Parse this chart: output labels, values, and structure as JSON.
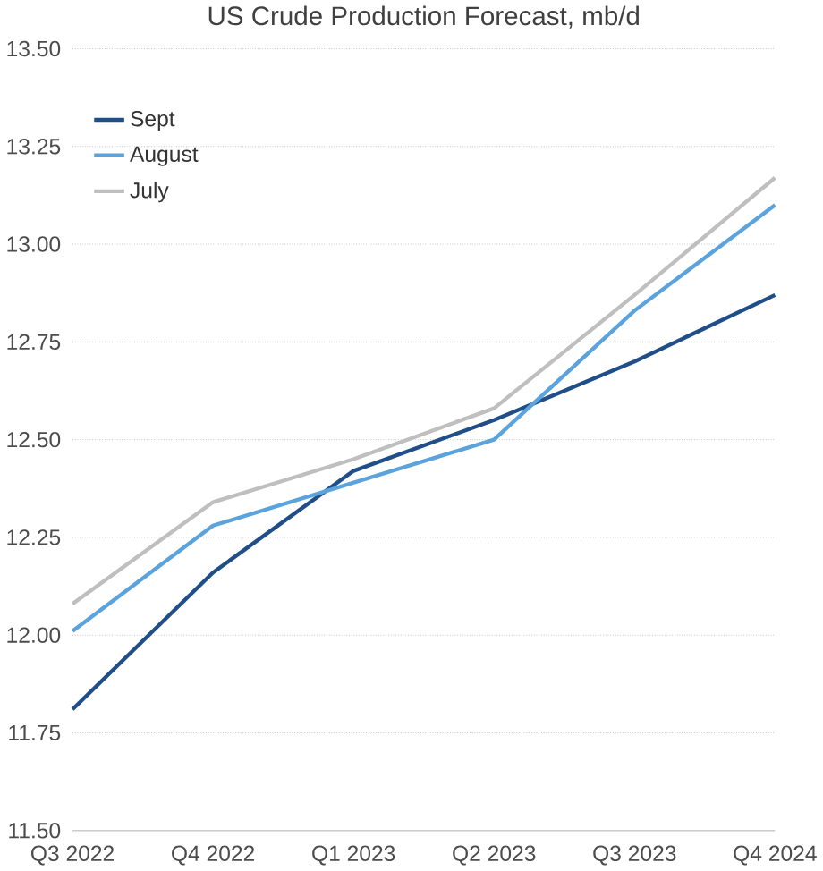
{
  "chart_data": {
    "type": "line",
    "title": "US Crude Production Forecast, mb/d",
    "categories": [
      "Q3 2022",
      "Q4 2022",
      "Q1 2023",
      "Q2 2023",
      "Q3 2023",
      "Q4 2024"
    ],
    "series": [
      {
        "name": "Sept",
        "color": "#1f4e89",
        "values": [
          11.81,
          12.16,
          12.42,
          12.55,
          12.7,
          12.87
        ]
      },
      {
        "name": "August",
        "color": "#5ba3dc",
        "values": [
          12.01,
          12.28,
          12.39,
          12.5,
          12.83,
          13.1
        ]
      },
      {
        "name": "July",
        "color": "#bfbfbf",
        "values": [
          12.08,
          12.34,
          12.45,
          12.58,
          12.87,
          13.17
        ]
      }
    ],
    "ylim": [
      11.5,
      13.5
    ],
    "yticks": [
      {
        "value": 11.5,
        "label": "11.50"
      },
      {
        "value": 11.75,
        "label": "11.75"
      },
      {
        "value": 12.0,
        "label": "12.00"
      },
      {
        "value": 12.25,
        "label": "12.25"
      },
      {
        "value": 12.5,
        "label": "12.50"
      },
      {
        "value": 12.75,
        "label": "12.75"
      },
      {
        "value": 13.0,
        "label": "13.00"
      },
      {
        "value": 13.25,
        "label": "13.25"
      },
      {
        "value": 13.5,
        "label": "13.50"
      }
    ],
    "grid": "y",
    "legend": "top left",
    "marker": "none",
    "line_style": "solid"
  }
}
